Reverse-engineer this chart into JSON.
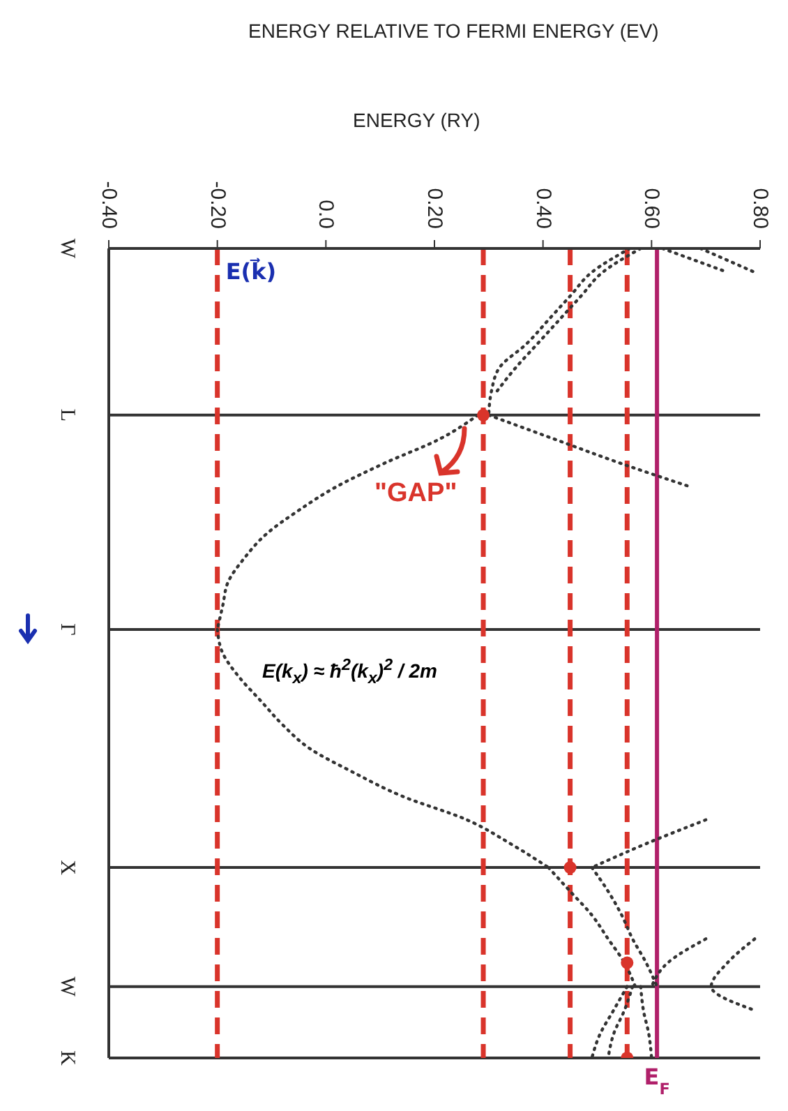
{
  "chart_data": {
    "type": "line",
    "orientation": "horizontal",
    "xlabel": "ENERGY (RY)",
    "line_style": "dotted",
    "grid": "y",
    "legend": false,
    "xlim": [
      -0.4,
      0.8
    ],
    "xticks": [
      {
        "value": -0.4,
        "label": "-0.40"
      },
      {
        "value": -0.2,
        "label": "-0.20"
      },
      {
        "value": 0,
        "label": "0.0"
      },
      {
        "value": 0.2,
        "label": "0.20"
      },
      {
        "value": 0.4,
        "label": "0.40"
      },
      {
        "value": 0.6,
        "label": "0.60"
      },
      {
        "value": 0.8,
        "label": "0.80"
      }
    ],
    "categories": [
      "W",
      null,
      null,
      null,
      null,
      null,
      null,
      "L",
      null,
      null,
      null,
      null,
      null,
      null,
      null,
      null,
      "Γ",
      null,
      null,
      null,
      null,
      null,
      null,
      null,
      null,
      null,
      "X",
      null,
      null,
      null,
      null,
      "W",
      null,
      null,
      "K"
    ],
    "series": [
      {
        "color": "#333333",
        "values": [
          null,
          null,
          null,
          null,
          null,
          null,
          null,
          0.28,
          0.21,
          0.11,
          0.02,
          -0.05,
          -0.11,
          -0.15,
          -0.18,
          -0.19,
          -0.2,
          null,
          null,
          null,
          null,
          null,
          null,
          null,
          null,
          null,
          null,
          null,
          null,
          null,
          null,
          null,
          null,
          null,
          null
        ]
      },
      {
        "color": "#333333",
        "values": [
          null,
          null,
          null,
          null,
          null,
          null,
          null,
          null,
          null,
          null,
          null,
          null,
          null,
          null,
          null,
          null,
          -0.2,
          -0.19,
          -0.16,
          -0.12,
          -0.08,
          -0.03,
          0.05,
          0.14,
          0.26,
          0.34,
          0.41,
          null,
          null,
          null,
          null,
          null,
          null,
          null,
          null
        ]
      },
      {
        "color": "#333333",
        "values": [
          null,
          null,
          null,
          null,
          null,
          null,
          null,
          null,
          null,
          null,
          null,
          null,
          null,
          null,
          null,
          null,
          null,
          null,
          null,
          null,
          null,
          null,
          null,
          null,
          null,
          null,
          0.41,
          0.45,
          0.49,
          0.52,
          0.55,
          0.57,
          null,
          null,
          null
        ]
      },
      {
        "color": "#333333",
        "values": [
          0.56,
          0.49,
          0.45,
          0.41,
          0.37,
          0.32,
          0.305,
          0.3,
          null,
          null,
          null,
          null,
          null,
          null,
          null,
          null,
          null,
          null,
          null,
          null,
          null,
          null,
          null,
          null,
          null,
          null,
          null,
          null,
          null,
          null,
          null,
          null,
          null,
          null,
          null
        ]
      },
      {
        "color": "#333333",
        "values": [
          0.58,
          0.51,
          0.47,
          0.43,
          0.39,
          0.35,
          0.315,
          null,
          null,
          null,
          null,
          null,
          null,
          null,
          null,
          null,
          null,
          null,
          null,
          null,
          null,
          null,
          null,
          null,
          null,
          null,
          null,
          null,
          null,
          null,
          null,
          null,
          null,
          null,
          null
        ]
      },
      {
        "color": "#333333",
        "values": [
          null,
          null,
          null,
          null,
          null,
          null,
          null,
          0.3,
          0.42,
          0.54,
          0.67,
          null,
          null,
          null,
          null,
          null,
          null,
          null,
          null,
          null,
          null,
          null,
          null,
          null,
          null,
          null,
          null,
          null,
          null,
          null,
          null,
          null,
          null,
          null,
          null
        ]
      },
      {
        "color": "#333333",
        "values": [
          0.62,
          0.74,
          null,
          null,
          null,
          null,
          null,
          null,
          null,
          null,
          null,
          null,
          null,
          null,
          null,
          null,
          null,
          null,
          null,
          null,
          null,
          null,
          null,
          null,
          null,
          null,
          null,
          null,
          null,
          null,
          null,
          null,
          null,
          null,
          null
        ]
      },
      {
        "color": "#333333",
        "values": [
          0.69,
          0.79,
          null,
          null,
          null,
          null,
          null,
          null,
          null,
          null,
          null,
          null,
          null,
          null,
          null,
          null,
          null,
          null,
          null,
          null,
          null,
          null,
          null,
          null,
          null,
          null,
          null,
          null,
          null,
          null,
          null,
          null,
          null,
          null,
          null
        ]
      },
      {
        "color": "#333333",
        "values": [
          null,
          null,
          null,
          null,
          null,
          null,
          null,
          null,
          null,
          null,
          null,
          null,
          null,
          null,
          null,
          null,
          null,
          null,
          null,
          null,
          null,
          null,
          null,
          null,
          0.7,
          0.59,
          0.49,
          null,
          null,
          null,
          null,
          null,
          null,
          null,
          null
        ]
      },
      {
        "color": "#333333",
        "values": [
          null,
          null,
          null,
          null,
          null,
          null,
          null,
          null,
          null,
          null,
          null,
          null,
          null,
          null,
          null,
          null,
          null,
          null,
          null,
          null,
          null,
          null,
          null,
          null,
          null,
          null,
          0.49,
          0.52,
          0.545,
          0.565,
          0.59,
          0.61,
          null,
          null,
          null
        ]
      },
      {
        "color": "#333333",
        "values": [
          null,
          null,
          null,
          null,
          null,
          null,
          null,
          null,
          null,
          null,
          null,
          null,
          null,
          null,
          null,
          null,
          null,
          null,
          null,
          null,
          null,
          null,
          null,
          null,
          null,
          null,
          null,
          null,
          null,
          0.7,
          0.63,
          0.6,
          null,
          null,
          null
        ]
      },
      {
        "color": "#333333",
        "values": [
          null,
          null,
          null,
          null,
          null,
          null,
          null,
          null,
          null,
          null,
          null,
          null,
          null,
          null,
          null,
          null,
          null,
          null,
          null,
          null,
          null,
          null,
          null,
          null,
          null,
          null,
          null,
          null,
          null,
          0.79,
          0.74,
          0.71,
          0.79,
          null,
          null
        ]
      },
      {
        "color": "#333333",
        "values": [
          null,
          null,
          null,
          null,
          null,
          null,
          null,
          null,
          null,
          null,
          null,
          null,
          null,
          null,
          null,
          null,
          null,
          null,
          null,
          null,
          null,
          null,
          null,
          null,
          null,
          null,
          null,
          null,
          null,
          null,
          null,
          0.555,
          0.53,
          0.505,
          0.49
        ]
      },
      {
        "color": "#333333",
        "values": [
          null,
          null,
          null,
          null,
          null,
          null,
          null,
          null,
          null,
          null,
          null,
          null,
          null,
          null,
          null,
          null,
          null,
          null,
          null,
          null,
          null,
          null,
          null,
          null,
          null,
          null,
          null,
          null,
          null,
          null,
          null,
          0.565,
          0.55,
          0.53,
          0.52
        ]
      },
      {
        "color": "#333333",
        "values": [
          null,
          null,
          null,
          null,
          null,
          null,
          null,
          null,
          null,
          null,
          null,
          null,
          null,
          null,
          null,
          null,
          null,
          null,
          null,
          null,
          null,
          null,
          null,
          null,
          null,
          null,
          null,
          null,
          null,
          null,
          null,
          0.58,
          0.585,
          0.595,
          0.6
        ]
      },
      {
        "type": "scatter",
        "marker": "circle",
        "color": "#d9342b",
        "values": [
          null,
          null,
          null,
          null,
          null,
          null,
          null,
          0.29,
          null,
          null,
          null,
          null,
          null,
          null,
          null,
          null,
          null,
          null,
          null,
          null,
          null,
          null,
          null,
          null,
          null,
          null,
          0.45,
          null,
          null,
          null,
          0.555,
          null,
          null,
          null,
          0.555
        ]
      }
    ],
    "ref_lines": [
      {
        "axis": "x",
        "value": -0.2,
        "label": "E(k⃗)",
        "color": "#d9342b",
        "line_style": "dashed"
      },
      {
        "axis": "x",
        "value": 0.29,
        "color": "#d9342b",
        "line_style": "dashed"
      },
      {
        "axis": "x",
        "value": 0.45,
        "color": "#d9342b",
        "line_style": "dashed"
      },
      {
        "axis": "x",
        "value": 0.555,
        "color": "#d9342b",
        "line_style": "dashed"
      },
      {
        "axis": "x",
        "value": 0.61,
        "label": "E$_{F}$",
        "color": "#b0206a",
        "line_style": "solid"
      }
    ],
    "annotations": [
      "ENERGY RELATIVE TO FERMI ENERGY (EV)",
      "E(k$_{x}$) ≈ ħ$^{2}$(k$_{x}$)$^{2}$ / 2m",
      "\"GAP\""
    ]
  }
}
